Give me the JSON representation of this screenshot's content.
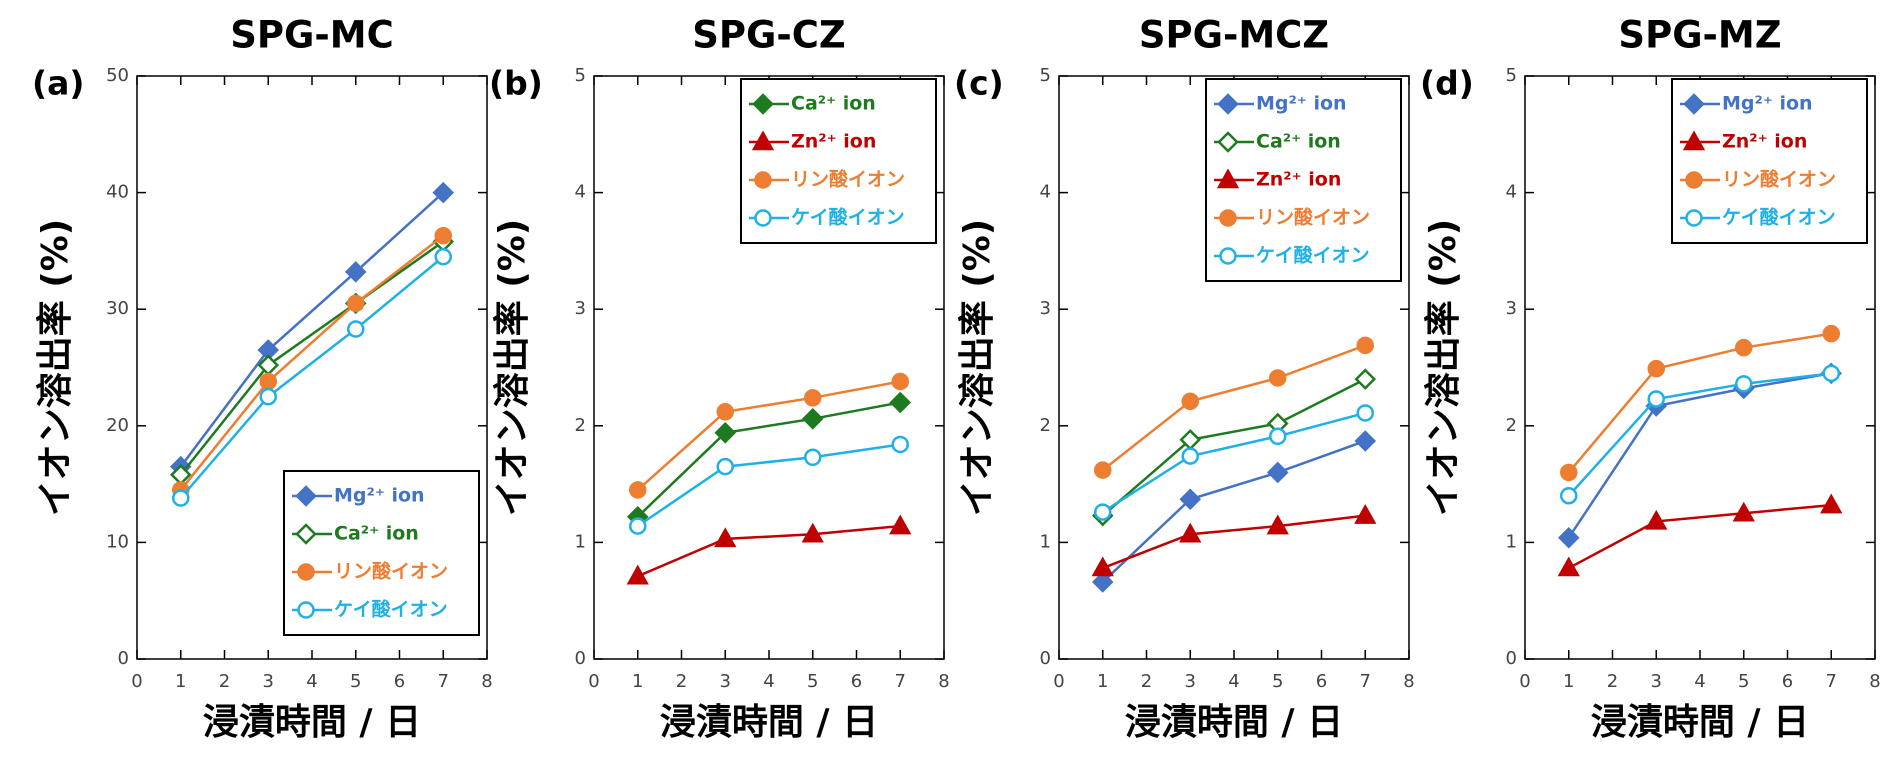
{
  "chart_data": [
    {
      "type": "line",
      "panel_label": "(a)",
      "title": "SPG-MC",
      "xlabel": "浸漬時間 / 日",
      "ylabel": "イオン溶出率 (%)",
      "x": [
        1,
        3,
        5,
        7
      ],
      "xlim": [
        0,
        8
      ],
      "xticks": [
        0,
        1,
        2,
        3,
        4,
        5,
        6,
        7,
        8
      ],
      "ylim": [
        0,
        50
      ],
      "yticks": [
        0,
        10,
        20,
        30,
        40,
        50
      ],
      "legend": "lower right",
      "series": [
        {
          "name": "Mg²⁺ ion",
          "color": "#4472c4",
          "marker": "diamond",
          "filled": true,
          "values": [
            16.5,
            26.5,
            33.2,
            40.0
          ]
        },
        {
          "name": "Ca²⁺ ion",
          "color": "#1e7a1e",
          "marker": "diamond",
          "filled": false,
          "values": [
            15.8,
            25.2,
            30.5,
            35.8
          ]
        },
        {
          "name": "リン酸イオン",
          "color": "#ed7d31",
          "marker": "circle",
          "filled": true,
          "values": [
            14.5,
            23.8,
            30.5,
            36.3
          ]
        },
        {
          "name": "ケイ酸イオン",
          "color": "#1fb0e8",
          "marker": "circle",
          "filled": false,
          "values": [
            13.8,
            22.5,
            28.3,
            34.5
          ]
        }
      ]
    },
    {
      "type": "line",
      "panel_label": "(b)",
      "title": "SPG-CZ",
      "xlabel": "浸漬時間 / 日",
      "ylabel": "イオン溶出率 (%)",
      "x": [
        1,
        3,
        5,
        7
      ],
      "xlim": [
        0,
        8
      ],
      "xticks": [
        0,
        1,
        2,
        3,
        4,
        5,
        6,
        7,
        8
      ],
      "ylim": [
        0,
        5
      ],
      "yticks": [
        0,
        1,
        2,
        3,
        4,
        5
      ],
      "legend": "upper right",
      "series": [
        {
          "name": "Ca²⁺ ion",
          "color": "#1e7a1e",
          "marker": "diamond",
          "filled": true,
          "values": [
            1.22,
            1.94,
            2.06,
            2.2
          ]
        },
        {
          "name": "Zn²⁺ ion",
          "color": "#c00000",
          "marker": "triangle",
          "filled": true,
          "values": [
            0.71,
            1.03,
            1.07,
            1.14
          ]
        },
        {
          "name": "リン酸イオン",
          "color": "#ed7d31",
          "marker": "circle",
          "filled": true,
          "values": [
            1.45,
            2.12,
            2.24,
            2.38
          ]
        },
        {
          "name": "ケイ酸イオン",
          "color": "#1fb0e8",
          "marker": "circle",
          "filled": false,
          "values": [
            1.14,
            1.65,
            1.73,
            1.84
          ]
        }
      ]
    },
    {
      "type": "line",
      "panel_label": "(c)",
      "title": "SPG-MCZ",
      "xlabel": "浸漬時間 / 日",
      "ylabel": "イオン溶出率 (%)",
      "x": [
        1,
        3,
        5,
        7
      ],
      "xlim": [
        0,
        8
      ],
      "xticks": [
        0,
        1,
        2,
        3,
        4,
        5,
        6,
        7,
        8
      ],
      "ylim": [
        0,
        5
      ],
      "yticks": [
        0,
        1,
        2,
        3,
        4,
        5
      ],
      "legend": "upper right",
      "series": [
        {
          "name": "Mg²⁺ ion",
          "color": "#4472c4",
          "marker": "diamond",
          "filled": true,
          "values": [
            0.66,
            1.37,
            1.6,
            1.87
          ]
        },
        {
          "name": "Ca²⁺ ion",
          "color": "#1e7a1e",
          "marker": "diamond",
          "filled": false,
          "values": [
            1.23,
            1.88,
            2.02,
            2.4
          ]
        },
        {
          "name": "Zn²⁺ ion",
          "color": "#c00000",
          "marker": "triangle",
          "filled": true,
          "values": [
            0.78,
            1.07,
            1.14,
            1.23
          ]
        },
        {
          "name": "リン酸イオン",
          "color": "#ed7d31",
          "marker": "circle",
          "filled": true,
          "values": [
            1.62,
            2.21,
            2.41,
            2.69
          ]
        },
        {
          "name": "ケイ酸イオン",
          "color": "#1fb0e8",
          "marker": "circle",
          "filled": false,
          "values": [
            1.26,
            1.74,
            1.91,
            2.11
          ]
        }
      ]
    },
    {
      "type": "line",
      "panel_label": "(d)",
      "title": "SPG-MZ",
      "xlabel": "浸漬時間 / 日",
      "ylabel": "イオン溶出率 (%)",
      "x": [
        1,
        3,
        5,
        7
      ],
      "xlim": [
        0,
        8
      ],
      "xticks": [
        0,
        1,
        2,
        3,
        4,
        5,
        6,
        7,
        8
      ],
      "ylim": [
        0,
        5
      ],
      "yticks": [
        0,
        1,
        2,
        3,
        4,
        5
      ],
      "legend": "upper right",
      "series": [
        {
          "name": "Mg²⁺ ion",
          "color": "#4472c4",
          "marker": "diamond",
          "filled": true,
          "values": [
            1.04,
            2.17,
            2.32,
            2.45
          ]
        },
        {
          "name": "Zn²⁺ ion",
          "color": "#c00000",
          "marker": "triangle",
          "filled": true,
          "values": [
            0.78,
            1.18,
            1.25,
            1.32
          ]
        },
        {
          "name": "リン酸イオン",
          "color": "#ed7d31",
          "marker": "circle",
          "filled": true,
          "values": [
            1.6,
            2.49,
            2.67,
            2.79
          ]
        },
        {
          "name": "ケイ酸イオン",
          "color": "#1fb0e8",
          "marker": "circle",
          "filled": false,
          "values": [
            1.4,
            2.23,
            2.36,
            2.45
          ]
        }
      ]
    }
  ]
}
